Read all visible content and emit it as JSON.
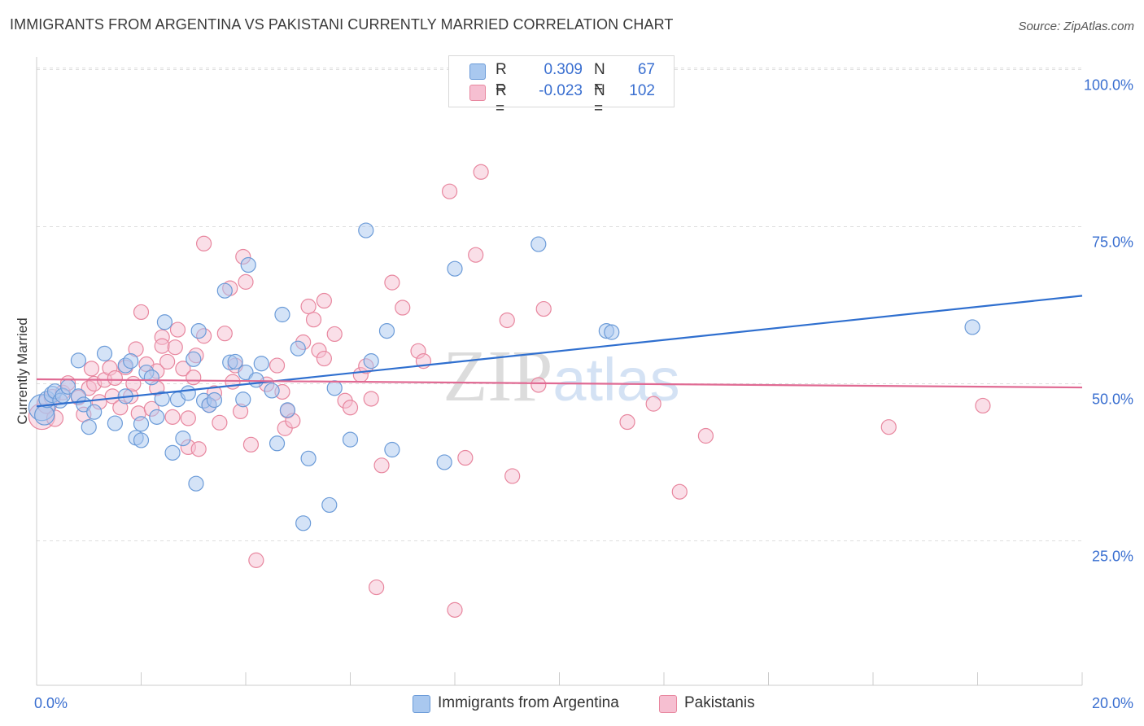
{
  "title": "IMMIGRANTS FROM ARGENTINA VS PAKISTANI CURRENTLY MARRIED CORRELATION CHART",
  "source": "Source: ZipAtlas.com",
  "watermark": "ZIPatlas",
  "colors": {
    "blue_fill": "#a9c8ef",
    "blue_stroke": "#6b9bd8",
    "blue_line": "#2f6fcf",
    "pink_fill": "#f6bfd1",
    "pink_stroke": "#e8879f",
    "pink_line": "#e06a93",
    "axis_text": "#3a6fd0",
    "grid": "#dedede"
  },
  "legend_top": [
    {
      "r_label": "R =",
      "r_value": "0.309",
      "n_label": "N =",
      "n_value": "67",
      "series": "blue"
    },
    {
      "r_label": "R =",
      "r_value": "-0.023",
      "n_label": "N =",
      "n_value": "102",
      "series": "pink"
    }
  ],
  "chart_data": {
    "type": "scatter",
    "title": "IMMIGRANTS FROM ARGENTINA VS PAKISTANI CURRENTLY MARRIED CORRELATION CHART",
    "xlabel": "",
    "ylabel": "Currently Married",
    "xlim": [
      0,
      20
    ],
    "ylim": [
      2,
      102
    ],
    "x_tick_labels": [
      "0.0%",
      "20.0%"
    ],
    "y_ticks": [
      25,
      50,
      75,
      100
    ],
    "y_tick_labels": [
      "25.0%",
      "50.0%",
      "75.0%",
      "100.0%"
    ],
    "grid": true,
    "legend_position": "bottom",
    "series": [
      {
        "name": "Immigrants from Argentina",
        "color": "blue",
        "trend": {
          "x": [
            0,
            20
          ],
          "y": [
            46.4,
            64.0
          ]
        },
        "points": [
          [
            0.1,
            46.2,
            16
          ],
          [
            0.15,
            45.0,
            12
          ],
          [
            0.2,
            47.5,
            10
          ],
          [
            0.3,
            48.3,
            10
          ],
          [
            0.35,
            48.8,
            9
          ],
          [
            0.45,
            47.3,
            9
          ],
          [
            0.5,
            48.1,
            9
          ],
          [
            0.6,
            49.5,
            9
          ],
          [
            0.8,
            48.0,
            9
          ],
          [
            0.8,
            53.7,
            9
          ],
          [
            0.9,
            46.7,
            9
          ],
          [
            1.0,
            43.1,
            9
          ],
          [
            1.1,
            45.5,
            9
          ],
          [
            1.3,
            54.8,
            9
          ],
          [
            1.5,
            43.7,
            9
          ],
          [
            1.7,
            52.9,
            9
          ],
          [
            1.7,
            48.0,
            9
          ],
          [
            1.8,
            53.6,
            9
          ],
          [
            1.9,
            41.4,
            9
          ],
          [
            2.0,
            43.6,
            9
          ],
          [
            2.0,
            41.0,
            9
          ],
          [
            2.1,
            51.8,
            9
          ],
          [
            2.2,
            51.0,
            9
          ],
          [
            2.3,
            44.7,
            9
          ],
          [
            2.4,
            47.6,
            9
          ],
          [
            2.45,
            59.8,
            9
          ],
          [
            2.6,
            39.0,
            9
          ],
          [
            2.7,
            47.5,
            9
          ],
          [
            2.8,
            41.3,
            9
          ],
          [
            2.9,
            48.5,
            9
          ],
          [
            3.0,
            53.9,
            9
          ],
          [
            3.05,
            34.1,
            9
          ],
          [
            3.1,
            58.4,
            9
          ],
          [
            3.2,
            47.3,
            9
          ],
          [
            3.3,
            46.6,
            9
          ],
          [
            3.4,
            47.4,
            9
          ],
          [
            3.6,
            64.8,
            9
          ],
          [
            3.7,
            53.4,
            9
          ],
          [
            3.8,
            53.5,
            9
          ],
          [
            3.95,
            47.5,
            9
          ],
          [
            4.0,
            51.8,
            9
          ],
          [
            4.05,
            68.9,
            9
          ],
          [
            4.2,
            50.6,
            9
          ],
          [
            4.3,
            53.2,
            9
          ],
          [
            4.5,
            48.9,
            9
          ],
          [
            4.6,
            40.5,
            9
          ],
          [
            4.7,
            61.0,
            9
          ],
          [
            4.8,
            45.8,
            9
          ],
          [
            5.0,
            55.6,
            9
          ],
          [
            5.1,
            27.8,
            9
          ],
          [
            5.2,
            38.1,
            9
          ],
          [
            5.6,
            30.7,
            9
          ],
          [
            5.7,
            49.3,
            9
          ],
          [
            6.0,
            41.1,
            9
          ],
          [
            6.3,
            74.4,
            9
          ],
          [
            6.4,
            53.6,
            9
          ],
          [
            6.7,
            58.4,
            9
          ],
          [
            6.8,
            39.5,
            9
          ],
          [
            7.8,
            37.5,
            9
          ],
          [
            8.0,
            68.3,
            9
          ],
          [
            9.6,
            72.2,
            9
          ],
          [
            10.9,
            58.4,
            9
          ],
          [
            11.0,
            58.2,
            9
          ],
          [
            17.9,
            59.0,
            9
          ]
        ]
      },
      {
        "name": "Pakistanis",
        "color": "pink",
        "trend": {
          "x": [
            0,
            20
          ],
          "y": [
            50.7,
            49.4
          ]
        },
        "points": [
          [
            0.1,
            44.8,
            16
          ],
          [
            0.2,
            46.8,
            12
          ],
          [
            0.3,
            47.8,
            10
          ],
          [
            0.35,
            44.5,
            10
          ],
          [
            0.5,
            48.6,
            9
          ],
          [
            0.6,
            50.1,
            9
          ],
          [
            0.8,
            47.8,
            9
          ],
          [
            0.9,
            45.1,
            9
          ],
          [
            1.0,
            49.3,
            9
          ],
          [
            1.05,
            52.4,
            9
          ],
          [
            1.1,
            50.0,
            9
          ],
          [
            1.2,
            47.1,
            9
          ],
          [
            1.3,
            50.6,
            9
          ],
          [
            1.4,
            52.5,
            9
          ],
          [
            1.45,
            48.0,
            9
          ],
          [
            1.5,
            50.9,
            9
          ],
          [
            1.6,
            46.2,
            9
          ],
          [
            1.7,
            52.6,
            9
          ],
          [
            1.8,
            48.0,
            9
          ],
          [
            1.85,
            50.0,
            9
          ],
          [
            1.9,
            55.5,
            9
          ],
          [
            1.95,
            45.3,
            9
          ],
          [
            2.0,
            61.4,
            9
          ],
          [
            2.1,
            53.1,
            9
          ],
          [
            2.2,
            46.0,
            9
          ],
          [
            2.3,
            52.0,
            9
          ],
          [
            2.3,
            49.3,
            9
          ],
          [
            2.4,
            57.4,
            9
          ],
          [
            2.4,
            56.0,
            9
          ],
          [
            2.5,
            53.5,
            9
          ],
          [
            2.6,
            44.7,
            9
          ],
          [
            2.65,
            55.8,
            9
          ],
          [
            2.7,
            58.6,
            9
          ],
          [
            2.8,
            52.4,
            9
          ],
          [
            2.9,
            44.5,
            9
          ],
          [
            2.9,
            39.9,
            9
          ],
          [
            3.0,
            51.0,
            9
          ],
          [
            3.05,
            54.5,
            9
          ],
          [
            3.1,
            39.6,
            9
          ],
          [
            3.2,
            57.6,
            9
          ],
          [
            3.2,
            72.3,
            9
          ],
          [
            3.3,
            46.6,
            9
          ],
          [
            3.4,
            48.5,
            9
          ],
          [
            3.5,
            43.8,
            9
          ],
          [
            3.6,
            58.0,
            9
          ],
          [
            3.7,
            65.2,
            9
          ],
          [
            3.75,
            50.3,
            9
          ],
          [
            3.8,
            52.9,
            9
          ],
          [
            3.9,
            45.6,
            9
          ],
          [
            3.95,
            70.2,
            9
          ],
          [
            4.0,
            66.2,
            9
          ],
          [
            4.1,
            40.3,
            9
          ],
          [
            4.2,
            21.9,
            9
          ],
          [
            4.4,
            49.9,
            9
          ],
          [
            4.6,
            52.9,
            9
          ],
          [
            4.7,
            48.7,
            9
          ],
          [
            4.75,
            42.9,
            9
          ],
          [
            4.8,
            45.7,
            9
          ],
          [
            4.9,
            44.1,
            9
          ],
          [
            5.1,
            56.6,
            9
          ],
          [
            5.2,
            62.3,
            9
          ],
          [
            5.3,
            60.2,
            9
          ],
          [
            5.4,
            55.3,
            9
          ],
          [
            5.5,
            54.0,
            9
          ],
          [
            5.5,
            63.2,
            9
          ],
          [
            5.7,
            57.9,
            9
          ],
          [
            5.9,
            47.3,
            9
          ],
          [
            6.0,
            46.2,
            9
          ],
          [
            6.2,
            51.4,
            9
          ],
          [
            6.3,
            52.8,
            9
          ],
          [
            6.4,
            47.6,
            9
          ],
          [
            6.5,
            17.6,
            9
          ],
          [
            6.6,
            37.0,
            9
          ],
          [
            6.8,
            66.1,
            9
          ],
          [
            7.0,
            62.1,
            9
          ],
          [
            7.3,
            55.2,
            9
          ],
          [
            7.4,
            53.6,
            9
          ],
          [
            7.9,
            80.6,
            9
          ],
          [
            8.0,
            14.0,
            9
          ],
          [
            8.2,
            38.2,
            9
          ],
          [
            8.4,
            70.5,
            9
          ],
          [
            8.5,
            83.7,
            9
          ],
          [
            9.0,
            60.1,
            9
          ],
          [
            9.1,
            35.3,
            9
          ],
          [
            9.6,
            49.8,
            9
          ],
          [
            9.7,
            61.9,
            9
          ],
          [
            11.3,
            43.9,
            9
          ],
          [
            11.8,
            46.8,
            9
          ],
          [
            12.3,
            32.8,
            9
          ],
          [
            12.8,
            41.7,
            9
          ],
          [
            16.3,
            43.1,
            9
          ],
          [
            18.1,
            46.5,
            9
          ]
        ]
      }
    ]
  }
}
